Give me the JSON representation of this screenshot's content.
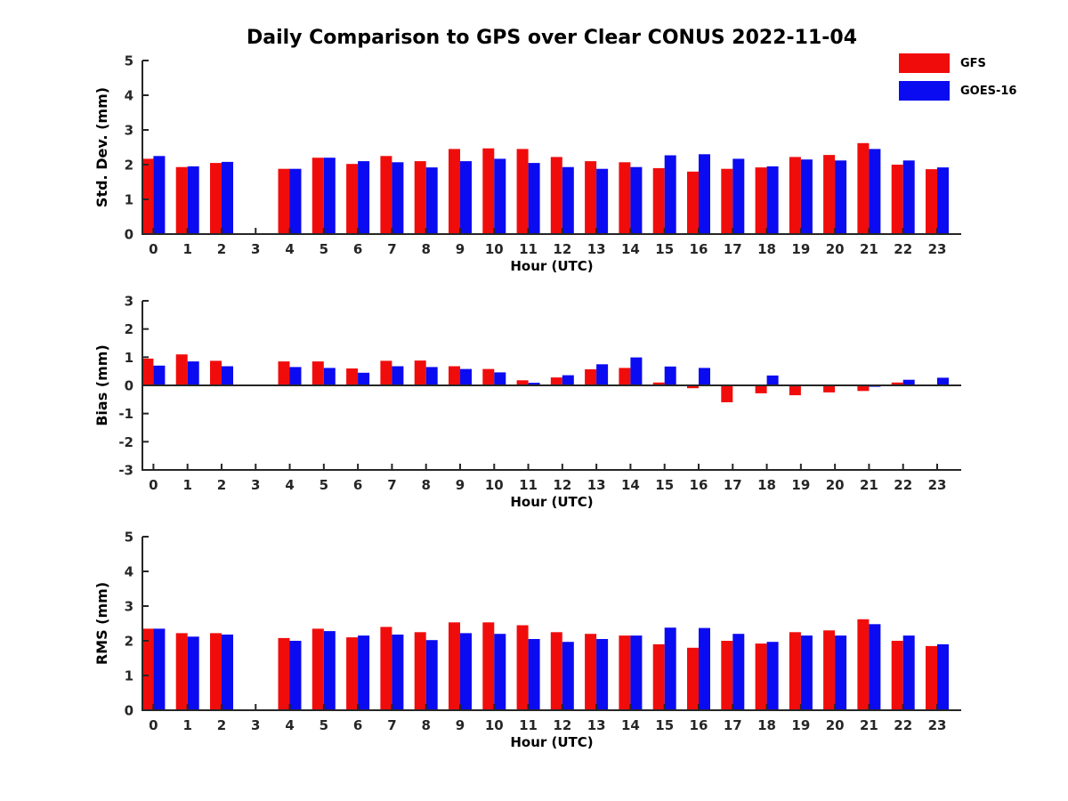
{
  "title": "Daily Comparison to GPS over Clear CONUS 2022-11-04",
  "legend": {
    "items": [
      {
        "label": "GFS",
        "color": "#f10c0c"
      },
      {
        "label": "GOES-16",
        "color": "#0b0bf1"
      }
    ]
  },
  "colors": {
    "axis": "#262626",
    "tick_text": "#262626",
    "label_text": "#000000",
    "background": "#ffffff",
    "gfs_red": "#f10c0c",
    "goes_blue": "#0b0bf1"
  },
  "chart_data": [
    {
      "type": "bar",
      "id": "stddev",
      "ylabel": "Std. Dev. (mm)",
      "xlabel": "Hour (UTC)",
      "ylim": [
        0,
        5
      ],
      "yticks": [
        0,
        1,
        2,
        3,
        4,
        5
      ],
      "grid": false,
      "legend_position": "top-right",
      "categories": [
        "0",
        "1",
        "2",
        "3",
        "4",
        "5",
        "6",
        "7",
        "8",
        "9",
        "10",
        "11",
        "12",
        "13",
        "14",
        "15",
        "16",
        "17",
        "18",
        "19",
        "20",
        "21",
        "22",
        "23"
      ],
      "missing_hours": [
        3
      ],
      "series": [
        {
          "name": "GFS",
          "color": "#f10c0c",
          "values": [
            2.17,
            1.93,
            2.05,
            null,
            1.88,
            2.2,
            2.02,
            2.25,
            2.1,
            2.45,
            2.47,
            2.45,
            2.22,
            2.1,
            2.07,
            1.9,
            1.8,
            1.88,
            1.92,
            2.22,
            2.28,
            2.62,
            2.0,
            1.87
          ]
        },
        {
          "name": "GOES-16",
          "color": "#0b0bf1",
          "values": [
            2.25,
            1.95,
            2.08,
            null,
            1.88,
            2.2,
            2.1,
            2.07,
            1.92,
            2.1,
            2.17,
            2.05,
            1.93,
            1.88,
            1.93,
            2.27,
            2.3,
            2.17,
            1.95,
            2.15,
            2.12,
            2.45,
            2.12,
            1.92
          ]
        }
      ]
    },
    {
      "type": "bar",
      "id": "bias",
      "ylabel": "Bias (mm)",
      "xlabel": "Hour (UTC)",
      "ylim": [
        -3,
        3
      ],
      "yticks": [
        3,
        2,
        1,
        0,
        -1,
        -2,
        -3
      ],
      "grid": false,
      "zero_line": true,
      "categories": [
        "0",
        "1",
        "2",
        "3",
        "4",
        "5",
        "6",
        "7",
        "8",
        "9",
        "10",
        "11",
        "12",
        "13",
        "14",
        "15",
        "16",
        "17",
        "18",
        "19",
        "20",
        "21",
        "22",
        "23"
      ],
      "missing_hours": [
        3
      ],
      "series": [
        {
          "name": "GFS",
          "color": "#f10c0c",
          "values": [
            0.95,
            1.1,
            0.87,
            null,
            0.85,
            0.85,
            0.6,
            0.87,
            0.88,
            0.68,
            0.58,
            0.18,
            0.28,
            0.57,
            0.62,
            0.1,
            -0.1,
            -0.6,
            -0.28,
            -0.35,
            -0.25,
            -0.2,
            0.1,
            0.0
          ]
        },
        {
          "name": "GOES-16",
          "color": "#0b0bf1",
          "values": [
            0.7,
            0.85,
            0.68,
            null,
            0.65,
            0.62,
            0.45,
            0.68,
            0.65,
            0.58,
            0.46,
            0.09,
            0.36,
            0.75,
            0.99,
            0.67,
            0.62,
            0.0,
            0.35,
            0.0,
            0.0,
            -0.05,
            0.2,
            0.27
          ]
        }
      ]
    },
    {
      "type": "bar",
      "id": "rms",
      "ylabel": "RMS (mm)",
      "xlabel": "Hour (UTC)",
      "ylim": [
        0,
        5
      ],
      "yticks": [
        0,
        1,
        2,
        3,
        4,
        5
      ],
      "grid": false,
      "categories": [
        "0",
        "1",
        "2",
        "3",
        "4",
        "5",
        "6",
        "7",
        "8",
        "9",
        "10",
        "11",
        "12",
        "13",
        "14",
        "15",
        "16",
        "17",
        "18",
        "19",
        "20",
        "21",
        "22",
        "23"
      ],
      "missing_hours": [
        3
      ],
      "series": [
        {
          "name": "GFS",
          "color": "#f10c0c",
          "values": [
            2.35,
            2.22,
            2.22,
            null,
            2.08,
            2.35,
            2.1,
            2.4,
            2.25,
            2.53,
            2.53,
            2.45,
            2.25,
            2.2,
            2.15,
            1.9,
            1.8,
            2.0,
            1.92,
            2.25,
            2.3,
            2.62,
            2.0,
            1.85
          ]
        },
        {
          "name": "GOES-16",
          "color": "#0b0bf1",
          "values": [
            2.35,
            2.12,
            2.18,
            null,
            2.0,
            2.28,
            2.15,
            2.18,
            2.02,
            2.22,
            2.2,
            2.05,
            1.97,
            2.05,
            2.15,
            2.38,
            2.37,
            2.2,
            1.97,
            2.15,
            2.15,
            2.48,
            2.15,
            1.9
          ]
        }
      ]
    }
  ]
}
